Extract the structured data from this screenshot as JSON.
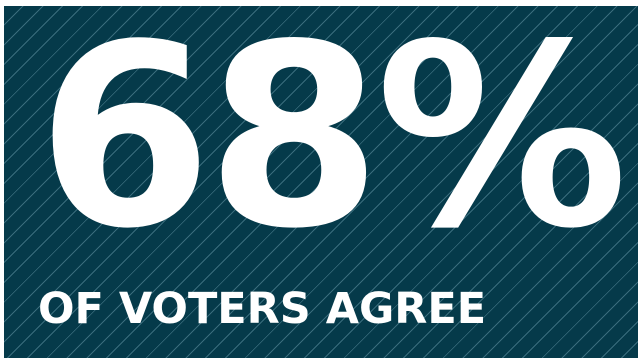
{
  "stat": {
    "value": "68%",
    "caption": "OF VOTERS AGREE"
  },
  "colors": {
    "background": "#053a4a",
    "stripe": "#78aab9",
    "text": "#ffffff",
    "page": "#ffffff"
  }
}
